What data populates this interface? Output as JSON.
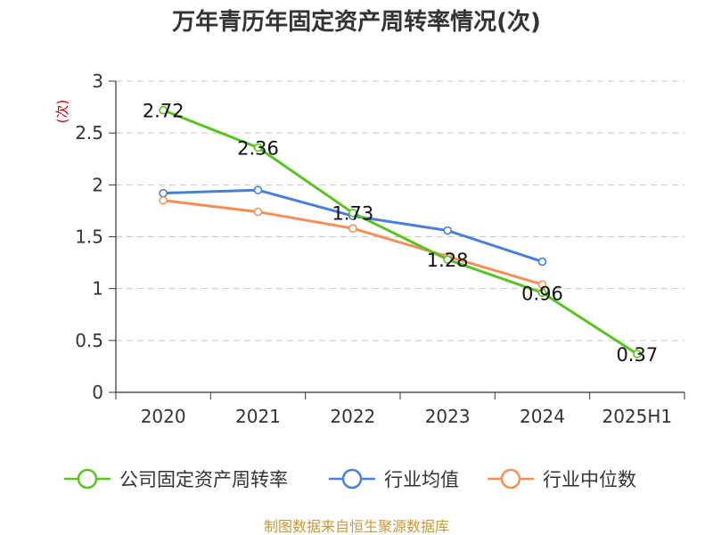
{
  "chart_data": {
    "type": "line",
    "title": "万年青历年固定资产周转率情况(次)",
    "ylabel": "(次)",
    "xlabel": "",
    "categories": [
      "2020",
      "2021",
      "2022",
      "2023",
      "2024",
      "2025H1"
    ],
    "ylim": [
      0,
      3
    ],
    "yticks": [
      "0",
      "0.5",
      "1",
      "1.5",
      "2",
      "2.5",
      "3"
    ],
    "grid": true,
    "legend_position": "bottom",
    "series": [
      {
        "name": "公司固定资产周转率",
        "color": "#5bc124",
        "values": [
          2.72,
          2.36,
          1.73,
          1.28,
          0.96,
          0.37
        ],
        "labels": [
          "2.72",
          "2.36",
          "1.73",
          "1.28",
          "0.96",
          "0.37"
        ]
      },
      {
        "name": "行业均值",
        "color": "#4a7fd6",
        "values": [
          1.92,
          1.95,
          1.7,
          1.56,
          1.26,
          null
        ]
      },
      {
        "name": "行业中位数",
        "color": "#f39059",
        "values": [
          1.85,
          1.74,
          1.58,
          1.31,
          1.04,
          null
        ]
      }
    ]
  },
  "source": "制图数据来自恒生聚源数据库"
}
